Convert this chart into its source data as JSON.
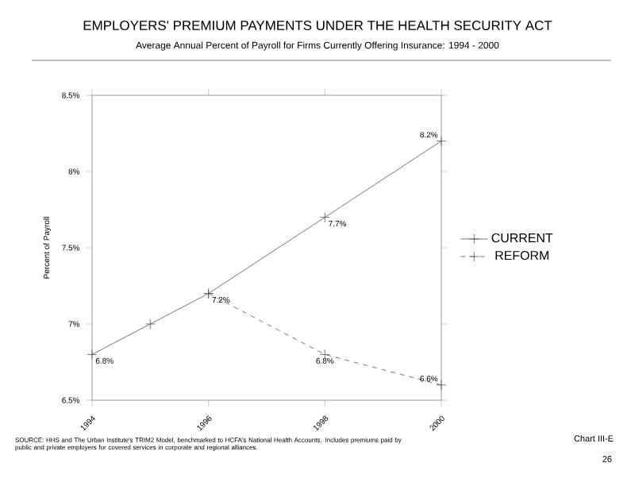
{
  "chart_data": {
    "type": "line",
    "title": "EMPLOYERS' PREMIUM PAYMENTS UNDER THE HEALTH SECURITY ACT",
    "subtitle": "Average Annual Percent of Payroll for Firms Currently Offering Insurance:  1994 - 2000",
    "ylabel": "Percent of Payroll",
    "xlim": [
      1994,
      2000
    ],
    "xticks": [
      1994,
      1996,
      1998,
      2000
    ],
    "ylim": [
      6.5,
      8.5
    ],
    "yticks": [
      {
        "value": 6.5,
        "label": "6.5%"
      },
      {
        "value": 7,
        "label": "7%"
      },
      {
        "value": 7.5,
        "label": "7.5%"
      },
      {
        "value": 8,
        "label": "8%"
      },
      {
        "value": 8.5,
        "label": "8.5%"
      }
    ],
    "grid": false,
    "legend": "right",
    "marker": "cross",
    "series": [
      {
        "name": "CURRENT",
        "color": "#555555",
        "line_style": "solid",
        "x": [
          1994,
          1995,
          1996,
          1998,
          2000
        ],
        "values": [
          6.8,
          7.0,
          7.2,
          7.7,
          8.2
        ],
        "value_labels": [
          "6.8%",
          null,
          "7.2%",
          "7.7%",
          "8.2%"
        ]
      },
      {
        "name": "REFORM",
        "color": "#555555",
        "line_style": "dashed",
        "x": [
          1996,
          1998,
          2000
        ],
        "values": [
          7.2,
          6.8,
          6.6
        ],
        "value_labels": [
          null,
          "6.8%",
          "6.6%"
        ]
      }
    ],
    "annotations": [
      "SOURCE:  HHS and The Urban Institute's TRIM2 Model, benchmarked to HCFA's National Health Accounts. Includes premiums paid by public and private employers for covered services in corporate and regional alliances.",
      "Chart III-E",
      "26"
    ]
  }
}
